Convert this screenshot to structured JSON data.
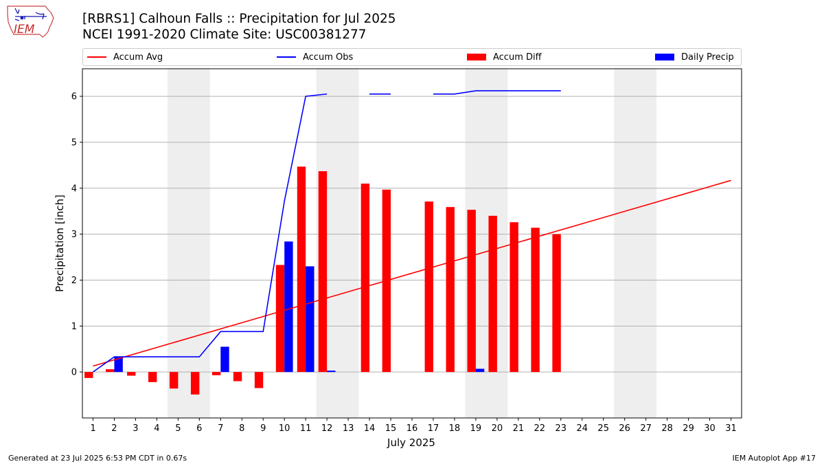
{
  "logo": {
    "text": "IEM"
  },
  "header": {
    "title_line1": "[RBRS1] Calhoun Falls :: Precipitation for Jul 2025",
    "title_line2": "NCEI 1991-2020 Climate Site: USC00381277"
  },
  "footer": {
    "generated": "Generated at 23 Jul 2025 6:53 PM CDT in 0.67s",
    "app": "IEM Autoplot App #17"
  },
  "colors": {
    "accum_avg": "#ff0000",
    "accum_obs": "#0000ff",
    "accum_diff": "#ff0000",
    "daily_precip": "#0000ff",
    "weekend_shade": "#eeeeee",
    "grid": "#b0b0b0"
  },
  "chart_data": {
    "type": "bar",
    "title": "[RBRS1] Calhoun Falls :: Precipitation for Jul 2025",
    "subtitle": "NCEI 1991-2020 Climate Site: USC00381277",
    "xlabel": "July 2025",
    "ylabel": "Precipitation [inch]",
    "x": [
      1,
      2,
      3,
      4,
      5,
      6,
      7,
      8,
      9,
      10,
      11,
      12,
      13,
      14,
      15,
      16,
      17,
      18,
      19,
      20,
      21,
      22,
      23,
      24,
      25,
      26,
      27,
      28,
      29,
      30,
      31
    ],
    "xlim": [
      0.5,
      31.5
    ],
    "ylim": [
      -1.0,
      6.6
    ],
    "yticks": [
      0,
      1,
      2,
      3,
      4,
      5,
      6
    ],
    "grid": "horizontal",
    "legend_position": "top",
    "legend": [
      "Accum Avg",
      "Accum Obs",
      "Accum Diff",
      "Daily Precip"
    ],
    "shaded_days": [
      [
        5,
        6
      ],
      [
        12,
        13
      ],
      [
        19,
        20
      ],
      [
        26,
        27
      ]
    ],
    "series": [
      {
        "name": "Accum Avg",
        "kind": "line",
        "x": [
          1,
          31
        ],
        "values": [
          0.13,
          4.17
        ]
      },
      {
        "name": "Accum Obs",
        "kind": "line",
        "segments": [
          {
            "x": [
              1,
              2,
              3,
              4,
              5,
              6,
              7,
              8,
              9,
              10,
              11,
              12
            ],
            "values": [
              0.0,
              0.33,
              0.33,
              0.33,
              0.33,
              0.33,
              0.88,
              0.88,
              0.88,
              3.72,
              6.0,
              6.05
            ]
          },
          {
            "x": [
              14,
              15
            ],
            "values": [
              6.05,
              6.05
            ]
          },
          {
            "x": [
              17,
              18,
              19,
              20,
              21,
              22,
              23
            ],
            "values": [
              6.05,
              6.05,
              6.12,
              6.12,
              6.12,
              6.12,
              6.12
            ]
          }
        ]
      },
      {
        "name": "Accum Diff",
        "kind": "bar",
        "x": [
          1,
          2,
          3,
          4,
          5,
          6,
          7,
          8,
          9,
          10,
          11,
          12,
          14,
          15,
          17,
          18,
          19,
          20,
          21,
          22,
          23
        ],
        "values": [
          -0.13,
          0.06,
          -0.08,
          -0.22,
          -0.36,
          -0.49,
          -0.07,
          -0.2,
          -0.35,
          2.33,
          4.47,
          4.37,
          4.1,
          3.97,
          3.71,
          3.59,
          3.53,
          3.4,
          3.26,
          3.14,
          3.0
        ]
      },
      {
        "name": "Daily Precip",
        "kind": "bar",
        "x": [
          2,
          7,
          10,
          11,
          12,
          19
        ],
        "values": [
          0.33,
          0.55,
          2.84,
          2.3,
          0.03,
          0.07
        ]
      }
    ]
  }
}
